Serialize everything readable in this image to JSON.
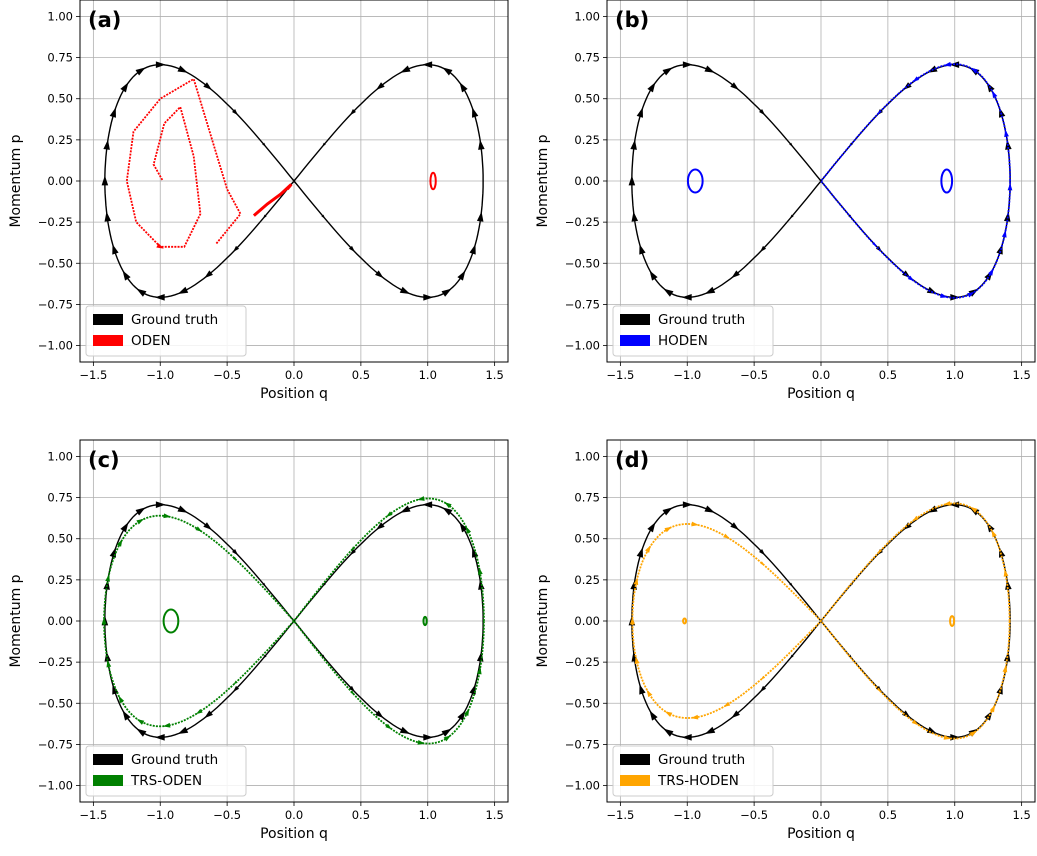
{
  "colors": {
    "ground_truth": "#000000",
    "ODEN": "#ff0000",
    "HODEN": "#0000ff",
    "TRS-ODEN": "#008000",
    "TRS-HODEN": "#ffa500",
    "grid": "#b0b0b0"
  },
  "chart_data": [
    {
      "type": "line",
      "panel_label": "(a)",
      "xlabel": "Position q",
      "ylabel": "Momentum p",
      "xlim": [
        -1.6,
        1.6
      ],
      "ylim": [
        -1.1,
        1.1
      ],
      "xticks": [
        -1.5,
        -1.0,
        -0.5,
        0.0,
        0.5,
        1.0,
        1.5
      ],
      "xtick_labels": [
        "−1.5",
        "−1.0",
        "−0.5",
        "0.0",
        "0.5",
        "1.0",
        "1.5"
      ],
      "yticks": [
        1.0,
        0.75,
        0.5,
        0.25,
        0.0,
        -0.25,
        -0.5,
        -0.75,
        -1.0
      ],
      "ytick_labels": [
        "1.00",
        "0.75",
        "0.50",
        "0.25",
        "0.00",
        "−0.25",
        "−0.50",
        "−0.75",
        "−1.00"
      ],
      "grid": true,
      "legend_position": "lower-left",
      "legend": [
        "Ground truth",
        "ODEN"
      ],
      "series": [
        {
          "name": "Ground truth",
          "color": "#000000",
          "curve": "lemniscate",
          "qmax": 1.414,
          "pmax": 0.707,
          "arrows": "large"
        },
        {
          "name": "ODEN",
          "color": "#ff0000",
          "curve": "inward_spiral",
          "points": [
            [
              -0.3,
              -0.21
            ],
            [
              -0.2,
              -0.14
            ],
            [
              -0.1,
              -0.08
            ],
            [
              -0.02,
              -0.02
            ],
            [
              -0.05,
              -0.05
            ]
          ],
          "spiral_segment": [
            [
              -0.58,
              -0.38
            ],
            [
              -0.4,
              -0.2
            ],
            [
              -0.5,
              -0.05
            ],
            [
              -0.75,
              0.62
            ],
            [
              -1.0,
              0.5
            ],
            [
              -1.2,
              0.3
            ],
            [
              -1.25,
              0.0
            ],
            [
              -1.18,
              -0.25
            ],
            [
              -1.0,
              -0.4
            ],
            [
              -0.82,
              -0.4
            ],
            [
              -0.7,
              -0.2
            ],
            [
              -0.75,
              0.15
            ],
            [
              -0.85,
              0.45
            ],
            [
              -0.97,
              0.35
            ],
            [
              -1.05,
              0.1
            ],
            [
              -0.98,
              0.0
            ]
          ],
          "small_loop": {
            "cx": 1.04,
            "cy": 0.0,
            "rx": 0.02,
            "ry": 0.05
          }
        }
      ]
    },
    {
      "type": "line",
      "panel_label": "(b)",
      "xlabel": "Position q",
      "ylabel": "Momentum p",
      "xlim": [
        -1.6,
        1.6
      ],
      "ylim": [
        -1.1,
        1.1
      ],
      "xticks": [
        -1.5,
        -1.0,
        -0.5,
        0.0,
        0.5,
        1.0,
        1.5
      ],
      "xtick_labels": [
        "−1.5",
        "−1.0",
        "−0.5",
        "0.0",
        "0.5",
        "1.0",
        "1.5"
      ],
      "yticks": [
        1.0,
        0.75,
        0.5,
        0.25,
        0.0,
        -0.25,
        -0.5,
        -0.75,
        -1.0
      ],
      "ytick_labels": [
        "1.00",
        "0.75",
        "0.50",
        "0.25",
        "0.00",
        "−0.25",
        "−0.50",
        "−0.75",
        "−1.00"
      ],
      "grid": true,
      "legend_position": "lower-left",
      "legend": [
        "Ground truth",
        "HODEN"
      ],
      "series": [
        {
          "name": "Ground truth",
          "color": "#000000",
          "curve": "lemniscate",
          "qmax": 1.414,
          "pmax": 0.707,
          "arrows": "large"
        },
        {
          "name": "HODEN",
          "color": "#0000ff",
          "curve": "right_lobe",
          "qmax": 1.414,
          "pmax": 0.71,
          "small_loops": [
            {
              "cx": -0.94,
              "cy": 0.0,
              "rx": 0.055,
              "ry": 0.07
            },
            {
              "cx": 0.94,
              "cy": 0.0,
              "rx": 0.04,
              "ry": 0.07
            }
          ]
        }
      ]
    },
    {
      "type": "line",
      "panel_label": "(c)",
      "xlabel": "Position q",
      "ylabel": "Momentum p",
      "xlim": [
        -1.6,
        1.6
      ],
      "ylim": [
        -1.1,
        1.1
      ],
      "xticks": [
        -1.5,
        -1.0,
        -0.5,
        0.0,
        0.5,
        1.0,
        1.5
      ],
      "xtick_labels": [
        "−1.5",
        "−1.0",
        "−0.5",
        "0.0",
        "0.5",
        "1.0",
        "1.5"
      ],
      "yticks": [
        1.0,
        0.75,
        0.5,
        0.25,
        0.0,
        -0.25,
        -0.5,
        -0.75,
        -1.0
      ],
      "ytick_labels": [
        "1.00",
        "0.75",
        "0.50",
        "0.25",
        "0.00",
        "−0.25",
        "−0.50",
        "−0.75",
        "−1.00"
      ],
      "grid": true,
      "legend_position": "lower-left",
      "legend": [
        "Ground truth",
        "TRS-ODEN"
      ],
      "series": [
        {
          "name": "Ground truth",
          "color": "#000000",
          "curve": "lemniscate",
          "qmax": 1.414,
          "pmax": 0.707,
          "arrows": "large"
        },
        {
          "name": "TRS-ODEN",
          "color": "#008000",
          "curve": "lemniscate_distorted",
          "qmax": 1.42,
          "pmax_left": 0.64,
          "pmax_right": 0.745,
          "small_loops": [
            {
              "cx": -0.92,
              "cy": 0.0,
              "rx": 0.055,
              "ry": 0.07
            },
            {
              "cx": 0.98,
              "cy": 0.0,
              "rx": 0.012,
              "ry": 0.025
            }
          ]
        }
      ]
    },
    {
      "type": "line",
      "panel_label": "(d)",
      "xlabel": "Position q",
      "ylabel": "Momentum p",
      "xlim": [
        -1.6,
        1.6
      ],
      "ylim": [
        -1.1,
        1.1
      ],
      "xticks": [
        -1.5,
        -1.0,
        -0.5,
        0.0,
        0.5,
        1.0,
        1.5
      ],
      "xtick_labels": [
        "−1.5",
        "−1.0",
        "−0.5",
        "0.0",
        "0.5",
        "1.0",
        "1.5"
      ],
      "yticks": [
        1.0,
        0.75,
        0.5,
        0.25,
        0.0,
        -0.25,
        -0.5,
        -0.75,
        -1.0
      ],
      "ytick_labels": [
        "1.00",
        "0.75",
        "0.50",
        "0.25",
        "0.00",
        "−0.25",
        "−0.50",
        "−0.75",
        "−1.00"
      ],
      "grid": true,
      "legend_position": "lower-left",
      "legend": [
        "Ground truth",
        "TRS-HODEN"
      ],
      "series": [
        {
          "name": "Ground truth",
          "color": "#000000",
          "curve": "lemniscate",
          "qmax": 1.414,
          "pmax": 0.707,
          "arrows": "large"
        },
        {
          "name": "TRS-HODEN",
          "color": "#ffa500",
          "curve": "lemniscate_distorted",
          "qmax": 1.41,
          "pmax_left": 0.59,
          "pmax_right": 0.715,
          "small_loops": [
            {
              "cx": -1.02,
              "cy": 0.0,
              "rx": 0.01,
              "ry": 0.015
            },
            {
              "cx": 0.98,
              "cy": 0.0,
              "rx": 0.015,
              "ry": 0.03
            }
          ]
        }
      ]
    }
  ]
}
